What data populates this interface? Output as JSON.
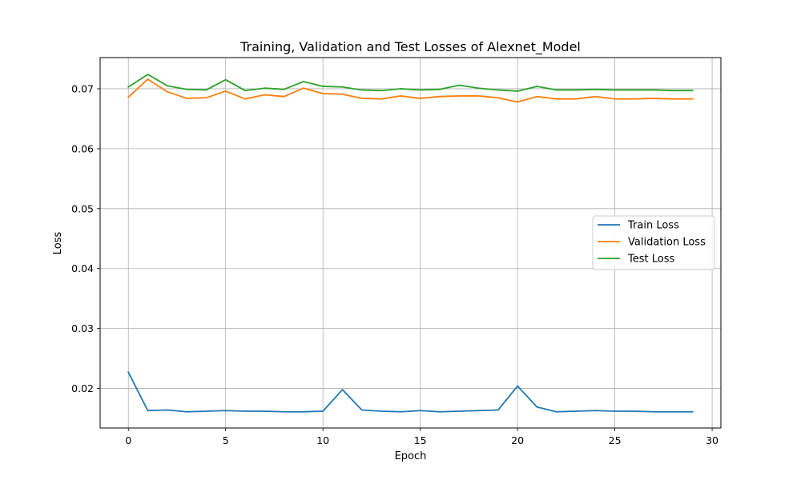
{
  "chart_data": {
    "type": "line",
    "title": "Training, Validation and Test Losses of Alexnet_Model",
    "xlabel": "Epoch",
    "ylabel": "Loss",
    "xlim": [
      -1.45,
      30.45
    ],
    "ylim": [
      0.0134,
      0.0752
    ],
    "xticks": [
      0,
      5,
      10,
      15,
      20,
      25,
      30
    ],
    "yticks": [
      0.02,
      0.03,
      0.04,
      0.05,
      0.06,
      0.07
    ],
    "grid": true,
    "legend_position": "center-right",
    "x": [
      0,
      1,
      2,
      3,
      4,
      5,
      6,
      7,
      8,
      9,
      10,
      11,
      12,
      13,
      14,
      15,
      16,
      17,
      18,
      19,
      20,
      21,
      22,
      23,
      24,
      25,
      26,
      27,
      28,
      29
    ],
    "series": [
      {
        "name": "Train Loss",
        "color": "#1f77b4",
        "values": [
          0.0227,
          0.0163,
          0.0164,
          0.0161,
          0.0162,
          0.0163,
          0.0162,
          0.0162,
          0.0161,
          0.0161,
          0.0162,
          0.0198,
          0.0164,
          0.0162,
          0.0161,
          0.0163,
          0.0161,
          0.0162,
          0.0163,
          0.0164,
          0.0204,
          0.0169,
          0.0161,
          0.0162,
          0.0163,
          0.0162,
          0.0162,
          0.0161,
          0.0161,
          0.0161
        ]
      },
      {
        "name": "Validation Loss",
        "color": "#ff7f0e",
        "values": [
          0.0686,
          0.0716,
          0.0695,
          0.0684,
          0.0685,
          0.0696,
          0.0683,
          0.069,
          0.0687,
          0.0701,
          0.0692,
          0.0691,
          0.0684,
          0.0683,
          0.0688,
          0.0684,
          0.0687,
          0.0688,
          0.0688,
          0.0685,
          0.0678,
          0.0687,
          0.0683,
          0.0683,
          0.0687,
          0.0683,
          0.0683,
          0.0684,
          0.0683,
          0.0683
        ]
      },
      {
        "name": "Test Loss",
        "color": "#2ca02c",
        "values": [
          0.0703,
          0.0724,
          0.0705,
          0.0699,
          0.0698,
          0.0715,
          0.0697,
          0.0701,
          0.0699,
          0.0712,
          0.0704,
          0.0703,
          0.0698,
          0.0697,
          0.07,
          0.0698,
          0.0699,
          0.0706,
          0.0701,
          0.0698,
          0.0696,
          0.0704,
          0.0698,
          0.0698,
          0.0699,
          0.0698,
          0.0698,
          0.0698,
          0.0697,
          0.0697
        ]
      }
    ]
  }
}
